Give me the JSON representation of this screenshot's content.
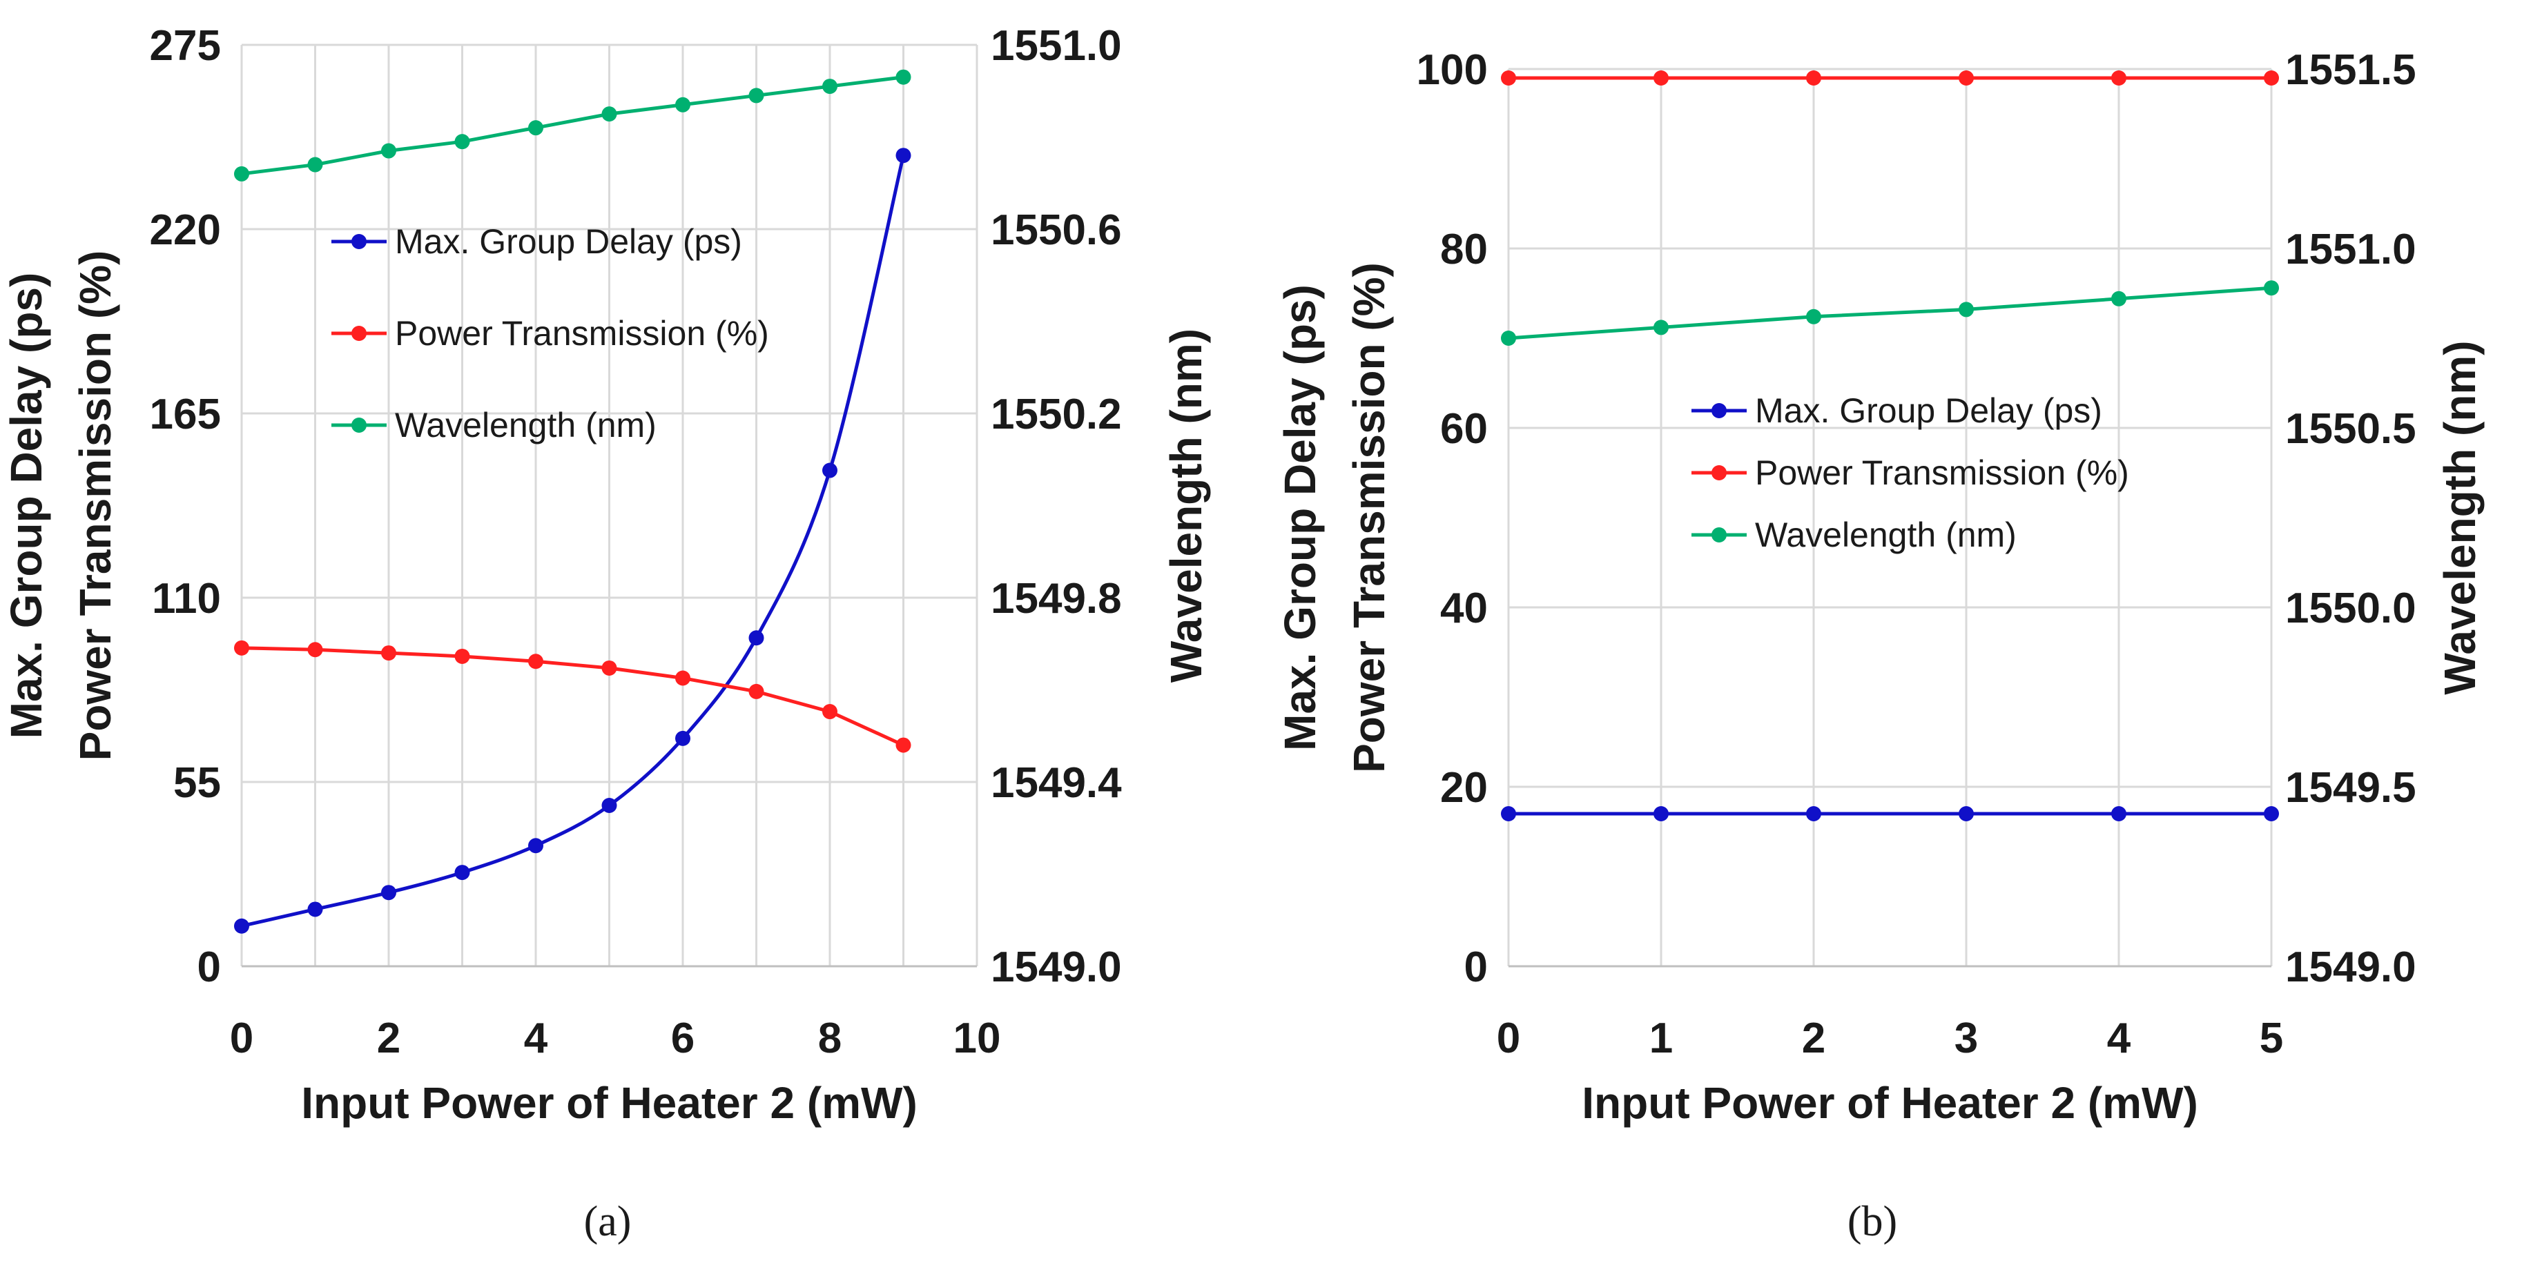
{
  "chart_data": [
    {
      "type": "line",
      "panel_label": "(a)",
      "xlabel": "Input Power of Heater 2 (mW)",
      "ylabel_left": [
        "Max. Group Delay (ps)",
        "Power Transmission (%)"
      ],
      "ylabel_right": "Wavelength (nm)",
      "xlim": [
        0,
        10
      ],
      "ylim_left": [
        0,
        275
      ],
      "ylim_right": [
        1549.0,
        1551.0
      ],
      "x_ticks": [
        "0",
        "2",
        "4",
        "6",
        "8",
        "10"
      ],
      "y_ticks_left": [
        "0",
        "55",
        "110",
        "165",
        "220",
        "275"
      ],
      "y_ticks_right": [
        "1549.0",
        "1549.4",
        "1549.8",
        "1550.2",
        "1550.6",
        "1551.0"
      ],
      "grid": true,
      "legend_position": "upper-left",
      "x": [
        0,
        1,
        2,
        3,
        4,
        5,
        6,
        7,
        8,
        9
      ],
      "series": [
        {
          "name": "Max. Group Delay (ps)",
          "axis": "left",
          "color": "#1010c8",
          "values": [
            12,
            17,
            22,
            28,
            36,
            48,
            68,
            98,
            148,
            242
          ]
        },
        {
          "name": "Power Transmission (%)",
          "axis": "left",
          "color": "#ff2020",
          "values": [
            95,
            94.5,
            93.5,
            92.5,
            91,
            89,
            86,
            82,
            76,
            66
          ]
        },
        {
          "name": "Wavelength (nm)",
          "axis": "right",
          "color": "#00b070",
          "values": [
            1550.72,
            1550.74,
            1550.77,
            1550.79,
            1550.82,
            1550.85,
            1550.87,
            1550.89,
            1550.91,
            1550.93
          ]
        }
      ]
    },
    {
      "type": "line",
      "panel_label": "(b)",
      "xlabel": "Input Power of Heater 2 (mW)",
      "ylabel_left": [
        "Max. Group Delay (ps)",
        "Power Transmission (%)"
      ],
      "ylabel_right": "Wavelength (nm)",
      "xlim": [
        0,
        5
      ],
      "ylim_left": [
        0,
        100
      ],
      "ylim_right": [
        1549.0,
        1551.5
      ],
      "x_ticks": [
        "0",
        "1",
        "2",
        "3",
        "4",
        "5"
      ],
      "y_ticks_left": [
        "0",
        "20",
        "40",
        "60",
        "80",
        "100"
      ],
      "y_ticks_right": [
        "1549.0",
        "1549.5",
        "1550.0",
        "1550.5",
        "1551.0",
        "1551.5"
      ],
      "grid": true,
      "legend_position": "center",
      "x": [
        0,
        1,
        2,
        3,
        4,
        5
      ],
      "series": [
        {
          "name": "Max. Group Delay (ps)",
          "axis": "left",
          "color": "#1010c8",
          "values": [
            17,
            17,
            17,
            17,
            17,
            17
          ]
        },
        {
          "name": "Power Transmission (%)",
          "axis": "left",
          "color": "#ff2020",
          "values": [
            99,
            99,
            99,
            99,
            99,
            99
          ]
        },
        {
          "name": "Wavelength (nm)",
          "axis": "right",
          "color": "#00b070",
          "values": [
            1550.75,
            1550.78,
            1550.81,
            1550.83,
            1550.86,
            1550.89
          ]
        }
      ]
    }
  ]
}
